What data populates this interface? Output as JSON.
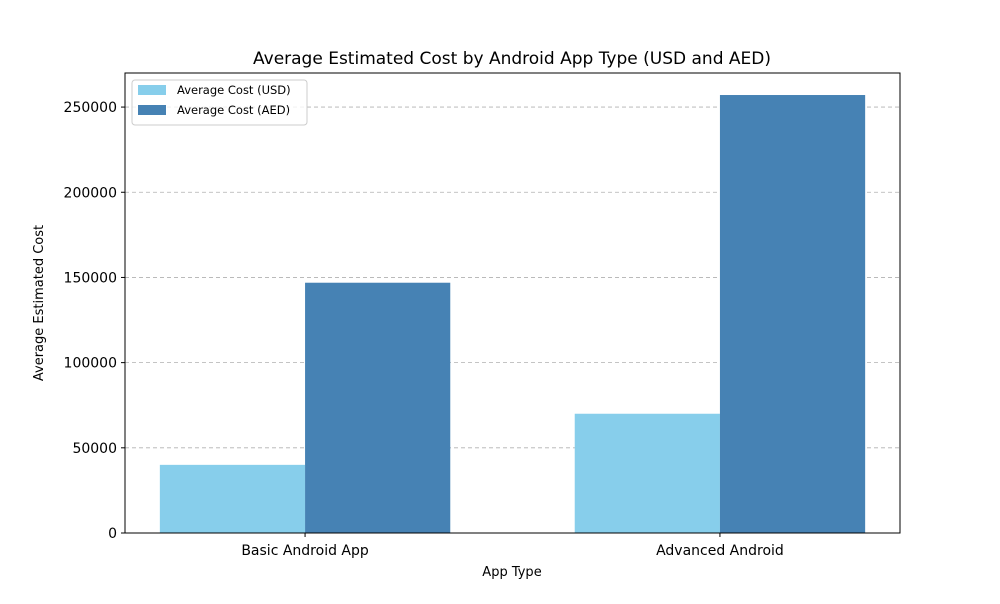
{
  "chart_data": {
    "type": "bar",
    "title": "Average Estimated Cost by Android App Type (USD and AED)",
    "xlabel": "App Type",
    "ylabel": "Average Estimated Cost",
    "categories": [
      "Basic Android App",
      "Advanced Android"
    ],
    "series": [
      {
        "name": "Average Cost (USD)",
        "values": [
          40000,
          70000
        ],
        "color": "#87ceeb"
      },
      {
        "name": "Average Cost (AED)",
        "values": [
          146900,
          257075
        ],
        "color": "#4682b4"
      }
    ],
    "ylim": [
      0,
      270000
    ],
    "yticks": [
      0,
      50000,
      100000,
      150000,
      200000,
      250000
    ],
    "grid": "y-dashed",
    "legend": "top-left"
  }
}
